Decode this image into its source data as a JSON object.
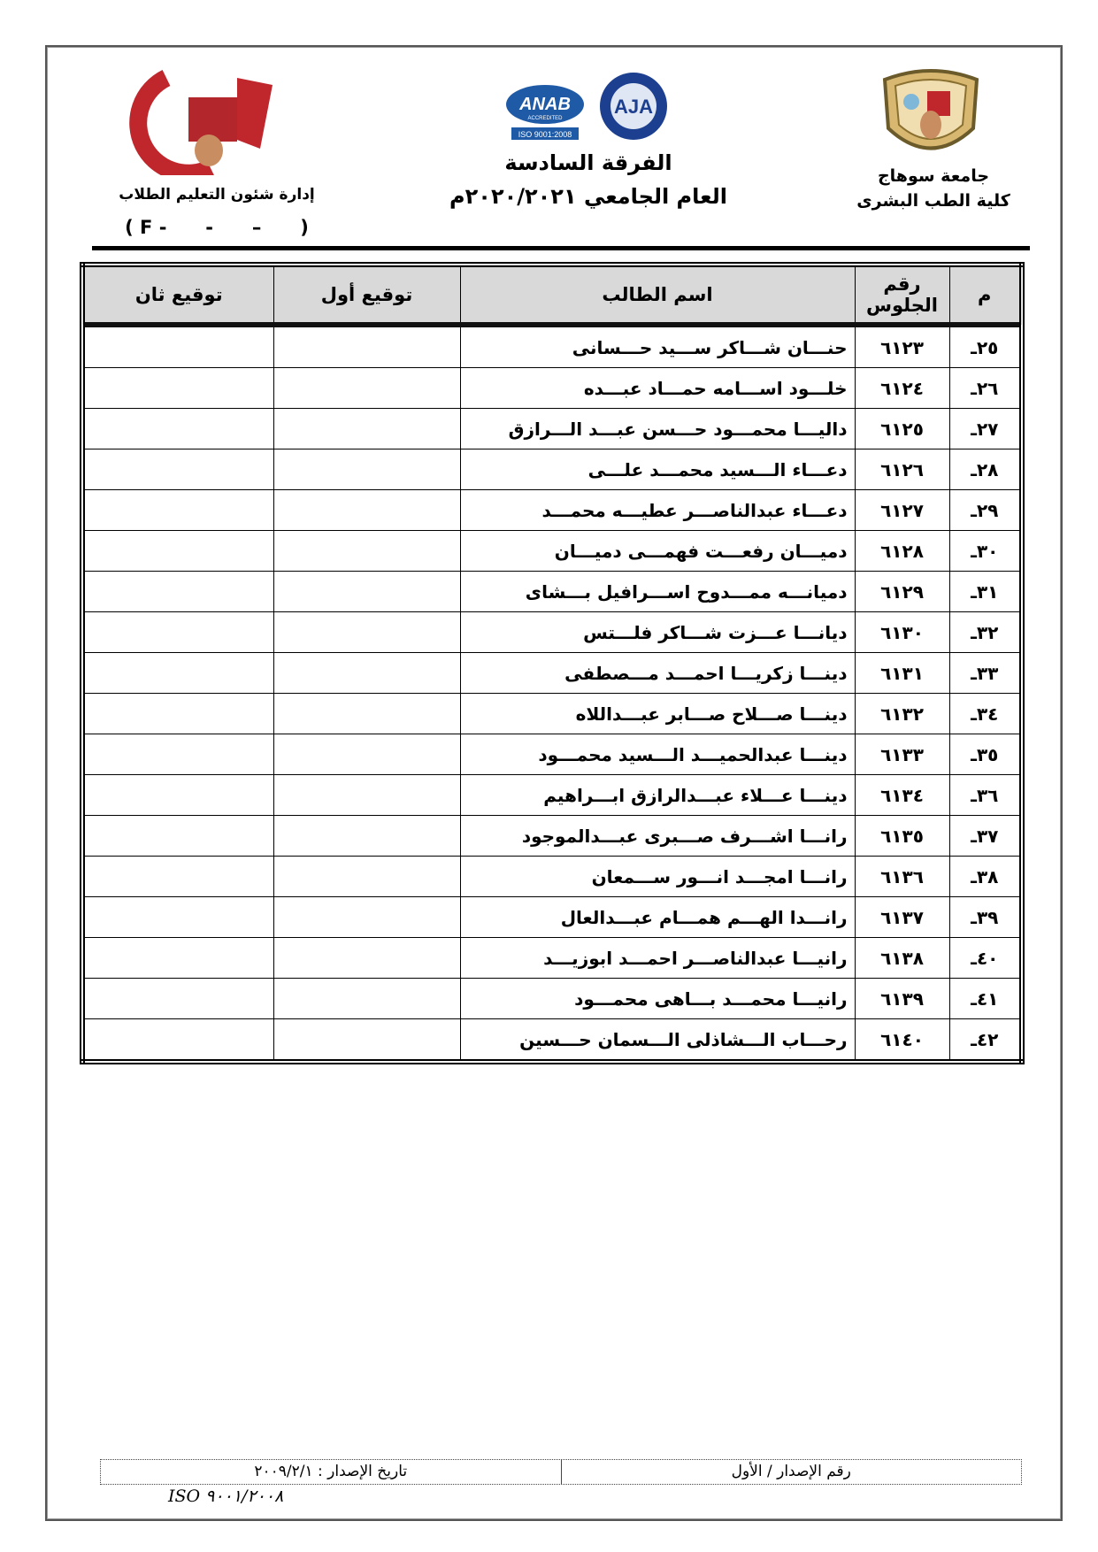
{
  "header": {
    "right_line1": "جامعة سوهاج",
    "right_line2": "كلية الطب البشرى",
    "center_title": "الفرقة السادسة",
    "center_year": "العام الجامعي ٢٠٢٠/٢٠٢١م",
    "left_line1": "إدارة شئون التعليم الطلاب",
    "left_code": "( F -      -      –      )",
    "logos": {
      "right": "سوهاج university seal",
      "center_anab": "ANAB",
      "center_anab_sub": "ACCREDITED",
      "center_iso": "ISO 9001:2008",
      "center_aja": "AJA",
      "left": "جامعة سوهاج كلية الطب"
    }
  },
  "table": {
    "columns": [
      "م",
      "رقم الجلوس",
      "اسم الطالب",
      "توقيع أول",
      "توقيع ثان"
    ],
    "rows": [
      {
        "n": "٢٥ـ",
        "seat": "٦١٢٣",
        "name": "حنـــان شـــاكر ســـيد حـــسانى"
      },
      {
        "n": "٢٦ـ",
        "seat": "٦١٢٤",
        "name": "خلـــود اســـامه حمـــاد عبـــده"
      },
      {
        "n": "٢٧ـ",
        "seat": "٦١٢٥",
        "name": "داليـــا محمـــود حـــسن عبـــد الـــرازق"
      },
      {
        "n": "٢٨ـ",
        "seat": "٦١٢٦",
        "name": "دعـــاء الـــسيد محمـــد علـــى"
      },
      {
        "n": "٢٩ـ",
        "seat": "٦١٢٧",
        "name": "دعـــاء عبدالناصـــر عطيـــه محمـــد"
      },
      {
        "n": "٣٠ـ",
        "seat": "٦١٢٨",
        "name": "دميـــان رفعـــت فهمـــى دميـــان"
      },
      {
        "n": "٣١ـ",
        "seat": "٦١٢٩",
        "name": "دميانـــه ممـــدوح اســـرافيل بـــشاى"
      },
      {
        "n": "٣٢ـ",
        "seat": "٦١٣٠",
        "name": "ديانـــا عـــزت شـــاكر فلـــتس"
      },
      {
        "n": "٣٣ـ",
        "seat": "٦١٣١",
        "name": "دينـــا زكريـــا احمـــد مـــصطفى"
      },
      {
        "n": "٣٤ـ",
        "seat": "٦١٣٢",
        "name": "دينـــا صـــلاح صـــابر عبـــداللاه"
      },
      {
        "n": "٣٥ـ",
        "seat": "٦١٣٣",
        "name": "دينـــا عبدالحميـــد الـــسيد محمـــود"
      },
      {
        "n": "٣٦ـ",
        "seat": "٦١٣٤",
        "name": "دينـــا عـــلاء عبـــدالرازق ابـــراهيم"
      },
      {
        "n": "٣٧ـ",
        "seat": "٦١٣٥",
        "name": "رانـــا اشـــرف صـــبرى عبـــدالموجود"
      },
      {
        "n": "٣٨ـ",
        "seat": "٦١٣٦",
        "name": "رانـــا امجـــد انـــور ســـمعان"
      },
      {
        "n": "٣٩ـ",
        "seat": "٦١٣٧",
        "name": "رانـــدا الهـــم همـــام عبـــدالعال"
      },
      {
        "n": "٤٠ـ",
        "seat": "٦١٣٨",
        "name": "رانيـــا عبدالناصـــر احمـــد ابوزيـــد"
      },
      {
        "n": "٤١ـ",
        "seat": "٦١٣٩",
        "name": "رانيـــا محمـــد بـــاهى محمـــود"
      },
      {
        "n": "٤٢ـ",
        "seat": "٦١٤٠",
        "name": "رحـــاب الـــشاذلى الـــسمان حـــسين"
      }
    ]
  },
  "footer": {
    "issue_number": "رقم الإصدار / الأول",
    "issue_date": "تاريخ الإصدار : ٢٠٠٩/٢/١",
    "iso": "ISO ٩٠٠١/٢٠٠٨"
  }
}
